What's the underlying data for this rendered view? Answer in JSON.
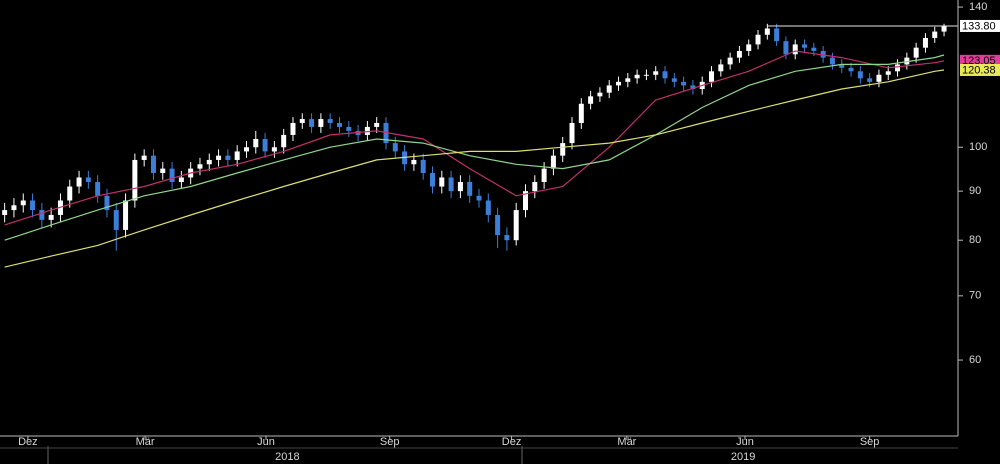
{
  "chart_data": {
    "type": "candlestick",
    "log_scale": true,
    "grid": false,
    "ylim": [
      50,
      142.4
    ],
    "yticks": [
      60,
      70,
      80,
      90,
      100,
      140
    ],
    "xlim": [
      -0.5,
      102.5
    ],
    "xticks": [
      {
        "value": 2.5,
        "label": "Dez"
      },
      {
        "value": 15.1,
        "label": "Mär"
      },
      {
        "value": 28.1,
        "label": "Jun"
      },
      {
        "value": 41.4,
        "label": "Sep"
      },
      {
        "value": 54.5,
        "label": "Dez"
      },
      {
        "value": 66.9,
        "label": "Mär"
      },
      {
        "value": 79.6,
        "label": "Jun"
      },
      {
        "value": 93,
        "label": "Sep"
      }
    ],
    "year_ticks": [
      {
        "value": 30.4,
        "label": "2018"
      },
      {
        "value": 79.4,
        "label": "2019"
      }
    ],
    "resistance": 133.8,
    "candles": {
      "color_up": "#ffffff",
      "color_down": "#3b7fd9",
      "last_label": "133.80",
      "open": [
        85,
        86,
        87,
        88,
        86,
        84,
        85,
        88,
        91,
        93,
        92,
        89,
        86,
        82,
        88,
        97,
        98,
        94,
        95,
        92,
        93,
        95,
        96,
        97,
        98,
        97,
        99,
        100,
        102,
        99,
        100,
        103,
        106,
        107,
        105,
        107,
        106,
        105,
        104,
        103,
        105,
        106,
        101,
        99,
        96,
        97,
        94,
        91,
        93,
        90,
        92,
        89,
        88,
        85,
        81,
        80,
        86,
        90,
        92,
        95,
        98,
        101,
        106,
        111,
        113,
        114,
        116,
        117,
        118,
        119,
        119,
        120,
        118,
        117,
        116,
        115,
        117,
        120,
        122,
        124,
        126,
        128,
        131,
        133,
        129,
        125,
        128,
        127,
        126,
        124,
        122,
        121,
        120,
        118,
        117,
        119,
        120,
        122,
        124,
        127,
        130,
        132
      ],
      "high": [
        87.5,
        88.5,
        89.5,
        89.5,
        87.5,
        86.5,
        89.5,
        92.5,
        94.5,
        94.5,
        93.5,
        90.5,
        87.5,
        89.5,
        98.5,
        99.5,
        99.5,
        96.5,
        96.5,
        94.5,
        96.5,
        97.5,
        98.5,
        99.5,
        99.5,
        100.5,
        101.5,
        104,
        103.5,
        101.5,
        104.5,
        107.5,
        108.5,
        108.5,
        108.5,
        108.5,
        107.5,
        106.5,
        105.5,
        106.5,
        107.5,
        107.5,
        102.5,
        100.5,
        98.5,
        98.5,
        95.5,
        94.5,
        94.5,
        93.5,
        93.5,
        90.5,
        89.5,
        86.5,
        82.5,
        87.5,
        91.5,
        93.5,
        96.5,
        99.5,
        102.5,
        107.5,
        112.5,
        114.5,
        115.5,
        117.5,
        118.5,
        119.5,
        120.5,
        120.5,
        121.5,
        121.5,
        119.5,
        118.5,
        117.5,
        118.5,
        121.5,
        123.5,
        125.5,
        127.5,
        129.5,
        132.5,
        134.5,
        134.5,
        130.5,
        129.5,
        129.5,
        128.5,
        127.5,
        125.5,
        123.5,
        122.5,
        121.5,
        119.5,
        120.5,
        121.5,
        123.5,
        125.5,
        128.5,
        131.5,
        133.5,
        134.5
      ],
      "low": [
        83.5,
        84.5,
        85.5,
        84.5,
        82.5,
        82.5,
        83.5,
        86.5,
        89.5,
        90.5,
        87.5,
        84.5,
        78,
        80.5,
        86.5,
        95.5,
        92.5,
        92.5,
        90.5,
        90.5,
        91.5,
        93.5,
        94.5,
        95.5,
        95.5,
        95.5,
        97.5,
        98.5,
        97.5,
        97.5,
        98.5,
        101.5,
        104.5,
        103.5,
        103.5,
        104.5,
        103.5,
        102.5,
        101.5,
        101.5,
        103.5,
        99.5,
        97.5,
        94.5,
        94.5,
        92.5,
        89.5,
        89.5,
        88.5,
        88.5,
        87.5,
        86.5,
        83.5,
        78.5,
        78,
        79,
        84.5,
        88.5,
        90.5,
        93.5,
        96.5,
        99.5,
        104.5,
        109.5,
        111.5,
        112.5,
        114.5,
        115.5,
        116.5,
        117.5,
        117.5,
        116.5,
        115.5,
        114.5,
        113.5,
        113.5,
        115.5,
        118.5,
        120.5,
        122.5,
        124.5,
        126.5,
        129.5,
        127.5,
        123.5,
        123.5,
        125.5,
        124.5,
        122.5,
        120.5,
        119.5,
        118.5,
        116.5,
        115.5,
        115.5,
        117.5,
        118.5,
        120.5,
        122.5,
        125.5,
        128.5,
        130.5
      ],
      "close": [
        86,
        87,
        88,
        86,
        84,
        85,
        88,
        91,
        93,
        92,
        89,
        86,
        82,
        88,
        97,
        98,
        94,
        95,
        92,
        93,
        95,
        96,
        97,
        98,
        97,
        99,
        100,
        102,
        99,
        100,
        103,
        106,
        107,
        105,
        107,
        106,
        105,
        104,
        103,
        105,
        106,
        101,
        99,
        96,
        97,
        94,
        91,
        93,
        90,
        92,
        89,
        88,
        85,
        81,
        80,
        86,
        90,
        92,
        95,
        98,
        101,
        106,
        111,
        113,
        114,
        116,
        117,
        118,
        119,
        119,
        120,
        118,
        117,
        116,
        115,
        117,
        120,
        122,
        124,
        126,
        128,
        131,
        133,
        129,
        125,
        128,
        127,
        126,
        124,
        122,
        121,
        120,
        118,
        117,
        119,
        120,
        122,
        124,
        127,
        130,
        132,
        133.8
      ]
    },
    "series": [
      {
        "color": "#c2306c",
        "label_color": "#e23c9c",
        "last_label": "123.05",
        "x": [
          0,
          5,
          10,
          15,
          20,
          25,
          30,
          35,
          40,
          45,
          50,
          55,
          60,
          65,
          70,
          75,
          80,
          85,
          90,
          95,
          100,
          101
        ],
        "values": [
          83,
          86,
          89,
          91,
          94,
          96,
          99,
          103,
          104,
          102,
          95,
          89,
          91,
          100,
          112,
          116,
          120,
          126,
          124,
          121,
          122.5,
          123.05
        ]
      },
      {
        "color": "#8fd68a",
        "x": [
          0,
          5,
          10,
          15,
          20,
          25,
          30,
          35,
          40,
          45,
          50,
          55,
          60,
          65,
          70,
          75,
          80,
          85,
          90,
          95,
          100,
          101
        ],
        "values": [
          80,
          83,
          86,
          89,
          91,
          94,
          97,
          100,
          102,
          101,
          98,
          96,
          95,
          97,
          103,
          110,
          116,
          120,
          122,
          122,
          124,
          124.8
        ]
      },
      {
        "color": "#dede6e",
        "label_color": "#e8e85a",
        "last_label": "120.38",
        "x": [
          0,
          5,
          10,
          15,
          20,
          25,
          30,
          35,
          40,
          45,
          50,
          55,
          60,
          65,
          70,
          75,
          80,
          85,
          90,
          95,
          100,
          101
        ],
        "values": [
          75,
          77,
          79,
          82,
          85,
          88,
          91,
          94,
          97,
          98,
          99,
          99,
          100,
          101,
          103,
          106,
          109,
          112,
          115,
          117,
          120,
          120.38
        ]
      }
    ]
  }
}
